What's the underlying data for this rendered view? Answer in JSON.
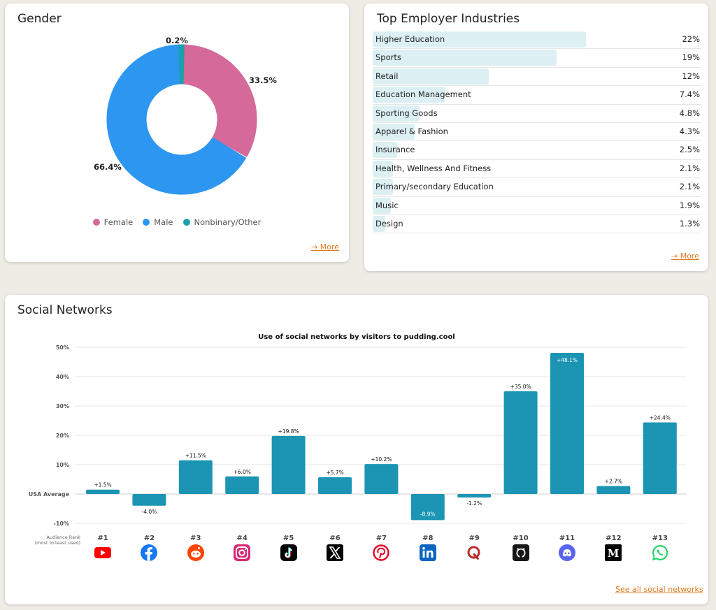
{
  "gender": {
    "title": "Gender",
    "more_label": "→ More",
    "chart_data": {
      "type": "pie",
      "title": "Gender",
      "slices": [
        {
          "label": "Female",
          "value": 33.5,
          "display": "33.5%",
          "color": "#d4699a"
        },
        {
          "label": "Male",
          "value": 66.4,
          "display": "66.4%",
          "color": "#2d96f0"
        },
        {
          "label": "Nonbinary/Other",
          "value": 0.2,
          "display": "0.2%",
          "color": "#1ba0ad"
        }
      ]
    }
  },
  "industries": {
    "title": "Top Employer Industries",
    "more_label": "→ More",
    "chart_data": {
      "type": "table",
      "title": "Top Employer Industries",
      "max_value": 22,
      "rows": [
        {
          "label": "Higher Education",
          "value": 22,
          "display": "22%"
        },
        {
          "label": "Sports",
          "value": 19,
          "display": "19%"
        },
        {
          "label": "Retail",
          "value": 12,
          "display": "12%"
        },
        {
          "label": "Education Management",
          "value": 7.4,
          "display": "7.4%"
        },
        {
          "label": "Sporting Goods",
          "value": 4.8,
          "display": "4.8%"
        },
        {
          "label": "Apparel & Fashion",
          "value": 4.3,
          "display": "4.3%"
        },
        {
          "label": "Insurance",
          "value": 2.5,
          "display": "2.5%"
        },
        {
          "label": "Health, Wellness And Fitness",
          "value": 2.1,
          "display": "2.1%"
        },
        {
          "label": "Primary/secondary Education",
          "value": 2.1,
          "display": "2.1%"
        },
        {
          "label": "Music",
          "value": 1.9,
          "display": "1.9%"
        },
        {
          "label": "Design",
          "value": 1.3,
          "display": "1.3%"
        }
      ]
    }
  },
  "social": {
    "title": "Social Networks",
    "see_all_label": "See all social networks",
    "bar_color": "#1b95b3",
    "chart_data": {
      "type": "bar",
      "title": "Use of social networks by visitors to pudding.cool",
      "ylim": [
        -10,
        50
      ],
      "yticks": [
        {
          "value": 50,
          "label": "50%"
        },
        {
          "value": 40,
          "label": "40%"
        },
        {
          "value": 30,
          "label": "30%"
        },
        {
          "value": 20,
          "label": "20%"
        },
        {
          "value": 10,
          "label": "10%"
        },
        {
          "value": 0,
          "label": "USA Average"
        },
        {
          "value": -10,
          "label": "-10%"
        }
      ],
      "rank_label_line1": "Audience Rank",
      "rank_label_line2": "(most to least used)",
      "categories": [
        "#1",
        "#2",
        "#3",
        "#4",
        "#5",
        "#6",
        "#7",
        "#8",
        "#9",
        "#10",
        "#11",
        "#12",
        "#13"
      ],
      "values": [
        1.5,
        -4.0,
        11.5,
        6.0,
        19.8,
        5.7,
        10.2,
        -8.9,
        -1.2,
        35.0,
        48.1,
        2.7,
        24.4
      ],
      "value_labels": [
        "+1.5%",
        "-4.0%",
        "+11.5%",
        "+6.0%",
        "+19.8%",
        "+5.7%",
        "+10.2%",
        "-8.9%",
        "-1.2%",
        "+35.0%",
        "+48.1%",
        "+2.7%",
        "+24.4%"
      ],
      "networks": [
        {
          "icon": "youtube-icon",
          "color": "#ff0000"
        },
        {
          "icon": "facebook-icon",
          "color": "#1877f2"
        },
        {
          "icon": "reddit-icon",
          "color": "#ff4500"
        },
        {
          "icon": "instagram-icon",
          "color": "#d62976"
        },
        {
          "icon": "tiktok-icon",
          "color": "#000000"
        },
        {
          "icon": "x-icon",
          "color": "#000000"
        },
        {
          "icon": "pinterest-icon",
          "color": "#e60023"
        },
        {
          "icon": "linkedin-icon",
          "color": "#0a66c2"
        },
        {
          "icon": "quora-icon",
          "color": "#b92b27"
        },
        {
          "icon": "github-icon",
          "color": "#181717"
        },
        {
          "icon": "discord-icon",
          "color": "#5865f2"
        },
        {
          "icon": "medium-icon",
          "color": "#000000",
          "glyph": "M"
        },
        {
          "icon": "whatsapp-icon",
          "color": "#25d366"
        }
      ]
    }
  }
}
